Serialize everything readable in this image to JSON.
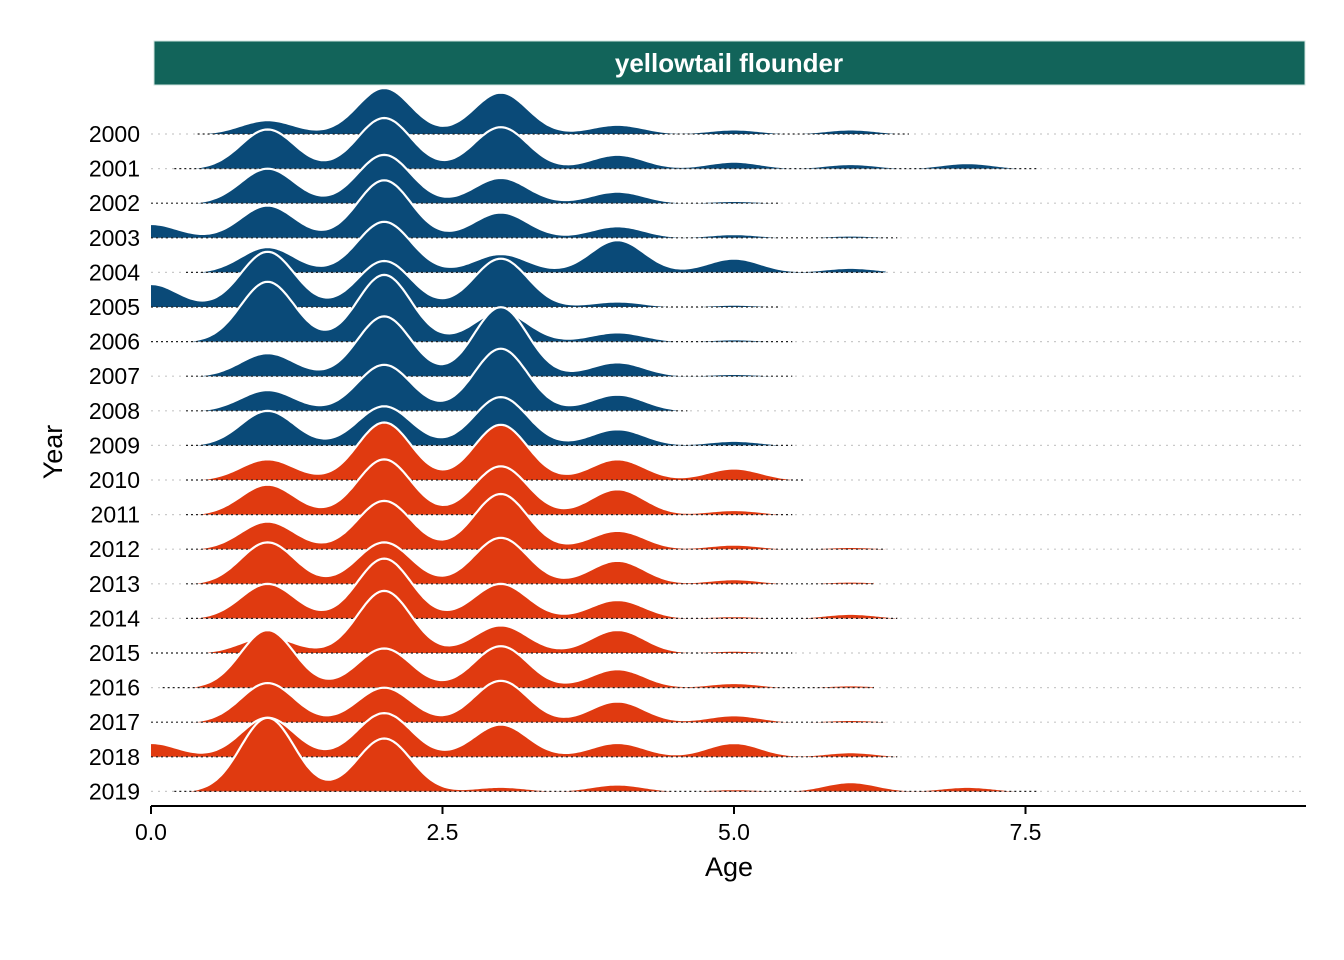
{
  "chart_data": {
    "type": "ridgeline",
    "title": "",
    "panel_title": "yellowtail flounder",
    "xlabel": "Age",
    "ylabel": "Year",
    "xlim": [
      0,
      9.9
    ],
    "x_ticks": [
      "0.0",
      "2.5",
      "5.0",
      "7.5"
    ],
    "x_tick_values": [
      0,
      2.5,
      5.0,
      7.5
    ],
    "grid": "dotted baselines per year",
    "legend": "none",
    "colors": {
      "strip": "#12645a",
      "years_2000_2009": "#0a4a78",
      "years_2010_2019": "#e03a10",
      "outline": "#ffffff"
    },
    "series": [
      {
        "year": "2000",
        "group": "early",
        "x_range": [
          0.4,
          6.5
        ],
        "peaks": [
          [
            1,
            0.3
          ],
          [
            2,
            1.0
          ],
          [
            3,
            0.9
          ],
          [
            4,
            0.2
          ],
          [
            5,
            0.1
          ],
          [
            6,
            0.1
          ]
        ]
      },
      {
        "year": "2001",
        "group": "early",
        "x_range": [
          0.2,
          7.6
        ],
        "peaks": [
          [
            1,
            0.85
          ],
          [
            2,
            1.1
          ],
          [
            3,
            0.9
          ],
          [
            4,
            0.3
          ],
          [
            5,
            0.15
          ],
          [
            6,
            0.1
          ],
          [
            7,
            0.12
          ]
        ]
      },
      {
        "year": "2002",
        "group": "early",
        "x_range": [
          0.0,
          5.4
        ],
        "peaks": [
          [
            1,
            0.75
          ],
          [
            2,
            1.05
          ],
          [
            3,
            0.55
          ],
          [
            4,
            0.25
          ],
          [
            5,
            0.05
          ]
        ]
      },
      {
        "year": "2003",
        "group": "early",
        "x_range": [
          0.0,
          6.4
        ],
        "peaks": [
          [
            0,
            0.3
          ],
          [
            1,
            0.7
          ],
          [
            2,
            1.25
          ],
          [
            3,
            0.55
          ],
          [
            4,
            0.25
          ],
          [
            5,
            0.08
          ],
          [
            6,
            0.05
          ]
        ]
      },
      {
        "year": "2004",
        "group": "early",
        "x_range": [
          0.3,
          6.3
        ],
        "peaks": [
          [
            1,
            0.55
          ],
          [
            2,
            1.1
          ],
          [
            3,
            0.4
          ],
          [
            4,
            0.7
          ],
          [
            5,
            0.3
          ],
          [
            6,
            0.1
          ]
        ]
      },
      {
        "year": "2005",
        "group": "early",
        "x_range": [
          0.0,
          5.4
        ],
        "peaks": [
          [
            0,
            0.5
          ],
          [
            1,
            1.2
          ],
          [
            2,
            1.0
          ],
          [
            3,
            1.05
          ],
          [
            4,
            0.12
          ],
          [
            5,
            0.05
          ]
        ]
      },
      {
        "year": "2006",
        "group": "early",
        "x_range": [
          0.0,
          5.5
        ],
        "peaks": [
          [
            1,
            1.3
          ],
          [
            2,
            1.45
          ],
          [
            3,
            0.65
          ],
          [
            4,
            0.2
          ],
          [
            5,
            0.05
          ]
        ]
      },
      {
        "year": "2007",
        "group": "early",
        "x_range": [
          0.3,
          5.5
        ],
        "peaks": [
          [
            1,
            0.5
          ],
          [
            2,
            1.3
          ],
          [
            3,
            1.5
          ],
          [
            4,
            0.3
          ],
          [
            5,
            0.05
          ]
        ]
      },
      {
        "year": "2008",
        "group": "early",
        "x_range": [
          0.3,
          4.6
        ],
        "peaks": [
          [
            1,
            0.45
          ],
          [
            2,
            1.0
          ],
          [
            3,
            1.35
          ],
          [
            4,
            0.35
          ]
        ]
      },
      {
        "year": "2009",
        "group": "early",
        "x_range": [
          0.3,
          5.5
        ],
        "peaks": [
          [
            1,
            0.75
          ],
          [
            2,
            0.85
          ],
          [
            3,
            1.05
          ],
          [
            4,
            0.35
          ],
          [
            5,
            0.1
          ]
        ]
      },
      {
        "year": "2010",
        "group": "late",
        "x_range": [
          0.3,
          5.6
        ],
        "peaks": [
          [
            1,
            0.45
          ],
          [
            2,
            1.25
          ],
          [
            3,
            1.2
          ],
          [
            4,
            0.45
          ],
          [
            5,
            0.25
          ]
        ]
      },
      {
        "year": "2011",
        "group": "late",
        "x_range": [
          0.3,
          5.5
        ],
        "peaks": [
          [
            1,
            0.65
          ],
          [
            2,
            1.2
          ],
          [
            3,
            1.05
          ],
          [
            4,
            0.55
          ],
          [
            5,
            0.1
          ]
        ]
      },
      {
        "year": "2012",
        "group": "late",
        "x_range": [
          0.3,
          6.3
        ],
        "peaks": [
          [
            1,
            0.6
          ],
          [
            2,
            1.05
          ],
          [
            3,
            1.2
          ],
          [
            4,
            0.4
          ],
          [
            5,
            0.1
          ],
          [
            6,
            0.05
          ]
        ]
      },
      {
        "year": "2013",
        "group": "late",
        "x_range": [
          0.3,
          6.2
        ],
        "peaks": [
          [
            1,
            0.9
          ],
          [
            2,
            0.9
          ],
          [
            3,
            1.0
          ],
          [
            4,
            0.5
          ],
          [
            5,
            0.1
          ],
          [
            6,
            0.05
          ]
        ]
      },
      {
        "year": "2014",
        "group": "late",
        "x_range": [
          0.3,
          6.4
        ],
        "peaks": [
          [
            1,
            0.75
          ],
          [
            2,
            1.3
          ],
          [
            3,
            0.75
          ],
          [
            4,
            0.4
          ],
          [
            5,
            0.05
          ],
          [
            6,
            0.1
          ]
        ]
      },
      {
        "year": "2015",
        "group": "late",
        "x_range": [
          0.0,
          5.5
        ],
        "peaks": [
          [
            1,
            0.35
          ],
          [
            2,
            1.35
          ],
          [
            3,
            0.6
          ],
          [
            4,
            0.5
          ],
          [
            5,
            0.05
          ]
        ]
      },
      {
        "year": "2016",
        "group": "late",
        "x_range": [
          0.1,
          6.2
        ],
        "peaks": [
          [
            1,
            1.25
          ],
          [
            2,
            0.85
          ],
          [
            3,
            0.9
          ],
          [
            4,
            0.4
          ],
          [
            5,
            0.1
          ],
          [
            6,
            0.05
          ]
        ]
      },
      {
        "year": "2017",
        "group": "late",
        "x_range": [
          0.0,
          6.3
        ],
        "peaks": [
          [
            1,
            0.85
          ],
          [
            2,
            0.75
          ],
          [
            3,
            0.9
          ],
          [
            4,
            0.45
          ],
          [
            5,
            0.15
          ],
          [
            6,
            0.05
          ]
        ]
      },
      {
        "year": "2018",
        "group": "late",
        "x_range": [
          0.0,
          6.4
        ],
        "peaks": [
          [
            0,
            0.3
          ],
          [
            1,
            0.85
          ],
          [
            2,
            0.95
          ],
          [
            3,
            0.7
          ],
          [
            4,
            0.3
          ],
          [
            5,
            0.3
          ],
          [
            6,
            0.1
          ]
        ]
      },
      {
        "year": "2019",
        "group": "late",
        "x_range": [
          0.2,
          7.6
        ],
        "peaks": [
          [
            1,
            1.6
          ],
          [
            2,
            1.15
          ],
          [
            3,
            0.1
          ],
          [
            4,
            0.15
          ],
          [
            5,
            0.05
          ],
          [
            6,
            0.2
          ],
          [
            7,
            0.1
          ]
        ]
      }
    ]
  }
}
